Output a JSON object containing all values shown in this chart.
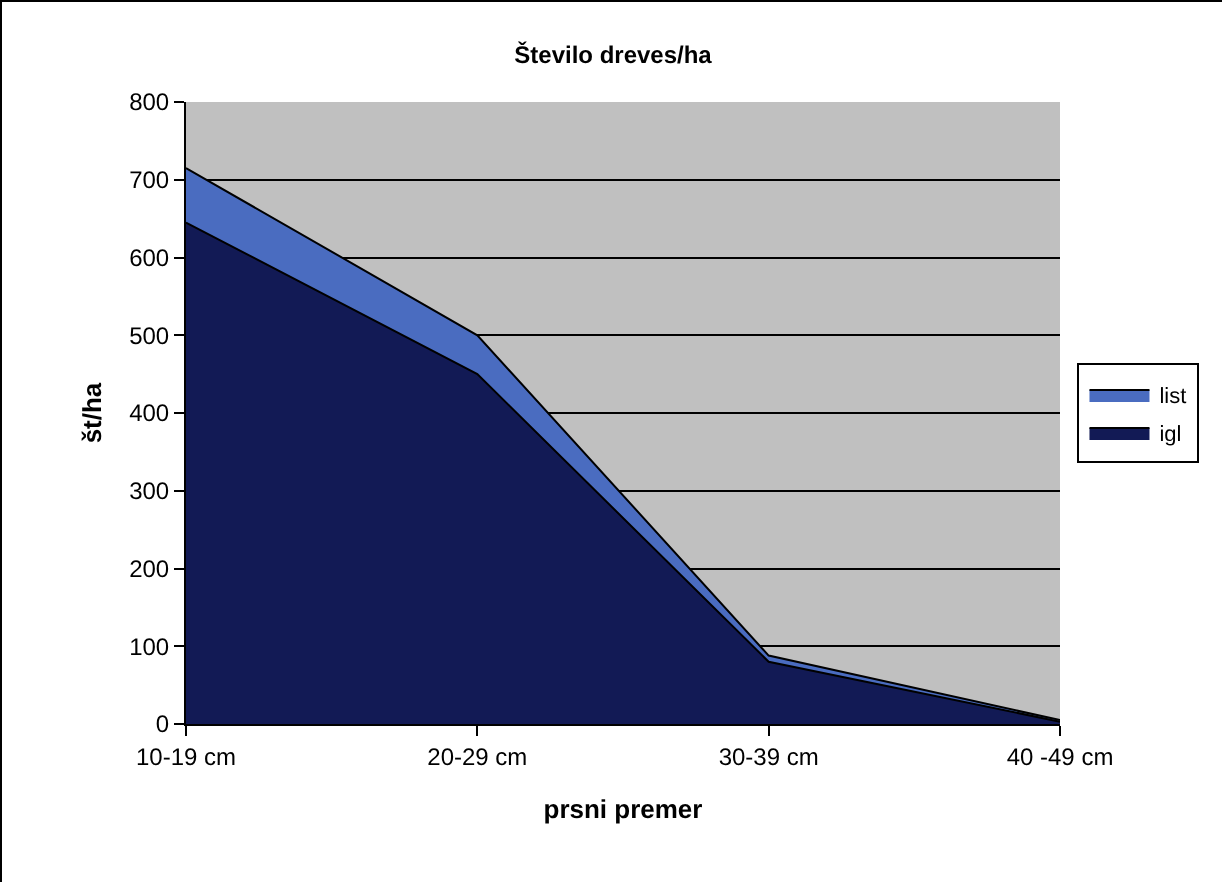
{
  "chart_data": {
    "type": "area",
    "title": "Število dreves/ha",
    "xlabel": "prsni premer",
    "ylabel": "št/ha",
    "categories": [
      "10-19 cm",
      "20-29 cm",
      "30-39 cm",
      "40 -49 cm"
    ],
    "stacked": true,
    "series": [
      {
        "name": "igl",
        "color": "#121a55",
        "values": [
          645,
          450,
          80,
          3
        ]
      },
      {
        "name": "list",
        "color": "#4a6cc0",
        "values": [
          70,
          50,
          8,
          2
        ]
      }
    ],
    "ylim": [
      0,
      800
    ],
    "yticks": [
      0,
      100,
      200,
      300,
      400,
      500,
      600,
      700,
      800
    ],
    "grid": "y",
    "legend": "right"
  }
}
